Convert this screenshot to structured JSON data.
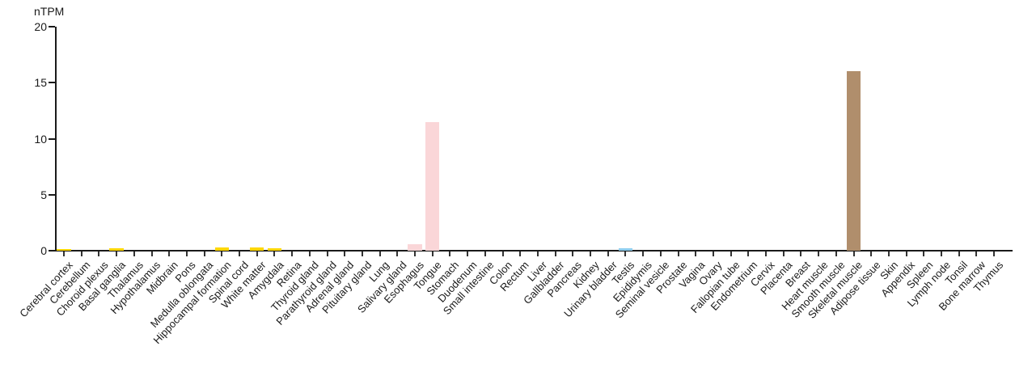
{
  "chart_data": {
    "type": "bar",
    "title": "",
    "xlabel": "",
    "ylabel": "nTPM",
    "ylim": [
      0,
      20
    ],
    "y_ticks": [
      0,
      5,
      10,
      15,
      20
    ],
    "grid": false,
    "legend": null,
    "categories": [
      "Cerebral cortex",
      "Cerebellum",
      "Choroid plexus",
      "Basal ganglia",
      "Thalamus",
      "Hypothalamus",
      "Midbrain",
      "Pons",
      "Medulla oblongata",
      "Hippocampal formation",
      "Spinal cord",
      "White matter",
      "Amygdala",
      "Retina",
      "Thyroid gland",
      "Parathyroid gland",
      "Adrenal gland",
      "Pituitary gland",
      "Lung",
      "Salivary gland",
      "Esophagus",
      "Tongue",
      "Stomach",
      "Duodenum",
      "Small intestine",
      "Colon",
      "Rectum",
      "Liver",
      "Gallbladder",
      "Pancreas",
      "Kidney",
      "Urinary bladder",
      "Testis",
      "Epididymis",
      "Seminal vesicle",
      "Prostate",
      "Vagina",
      "Ovary",
      "Fallopian tube",
      "Endometrium",
      "Cervix",
      "Placenta",
      "Breast",
      "Heart muscle",
      "Smooth muscle",
      "Skeletal muscle",
      "Adipose tissue",
      "Skin",
      "Appendix",
      "Spleen",
      "Lymph node",
      "Tonsil",
      "Bone marrow",
      "Thymus"
    ],
    "values": [
      0.15,
      0,
      0,
      0.25,
      0,
      0,
      0,
      0,
      0,
      0.3,
      0,
      0.3,
      0.2,
      0,
      0,
      0,
      0,
      0,
      0,
      0,
      0.6,
      11.5,
      0,
      0,
      0,
      0,
      0,
      0,
      0,
      0,
      0,
      0,
      0.2,
      0,
      0,
      0,
      0,
      0,
      0,
      0,
      0,
      0,
      0,
      0,
      0,
      16.0,
      0,
      0,
      0,
      0,
      0,
      0,
      0,
      0
    ],
    "bar_colors": [
      "#FFD600",
      null,
      null,
      "#FFD600",
      null,
      null,
      null,
      null,
      null,
      "#FFD600",
      null,
      "#FFD600",
      "#FFD600",
      null,
      null,
      null,
      null,
      null,
      null,
      null,
      "#FAD6D8",
      "#FAD6D8",
      null,
      null,
      null,
      null,
      null,
      null,
      null,
      null,
      null,
      null,
      "#8DCDEE",
      null,
      null,
      null,
      null,
      null,
      null,
      null,
      null,
      null,
      null,
      null,
      null,
      "#B08E6C",
      null,
      null,
      null,
      null,
      null,
      null,
      null,
      null
    ],
    "accent_colors": {
      "brain_yellow": "#FFD600",
      "mouth_pink": "#FAD6D8",
      "testis_blue": "#8DCDEE",
      "muscle_brown": "#B08E6C",
      "axis_color": "#1a1a1a"
    }
  }
}
